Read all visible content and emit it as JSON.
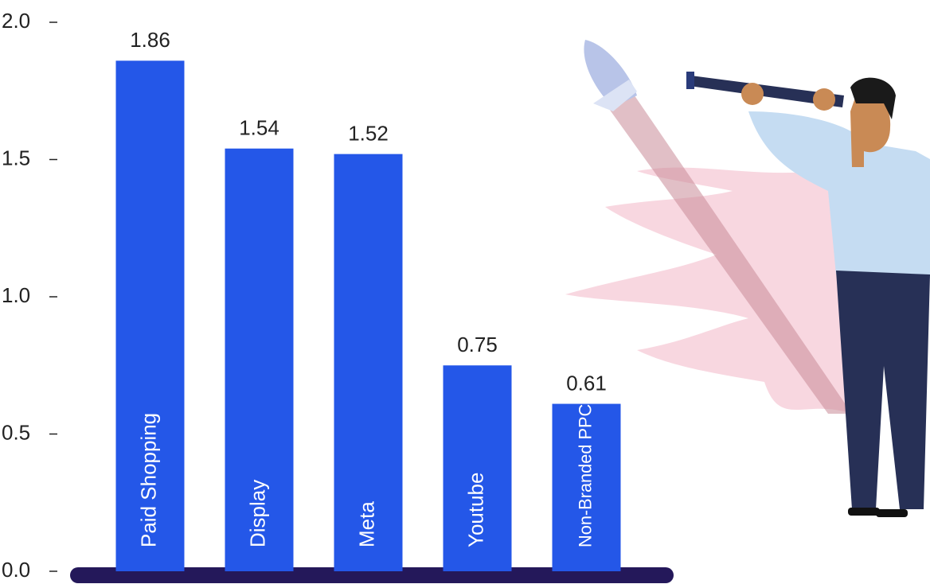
{
  "chart_data": {
    "type": "bar",
    "categories": [
      "Paid Shopping",
      "Display",
      "Meta",
      "Youtube",
      "Non-Branded PPC"
    ],
    "values": [
      1.86,
      1.54,
      1.52,
      0.75,
      0.61
    ],
    "color": "#2457e8",
    "ylim": [
      0,
      2
    ],
    "yticks": [
      {
        "value": 0,
        "label": "0.0"
      },
      0.5,
      {
        "value": 1,
        "label": "1.0"
      },
      1.5,
      {
        "value": 2,
        "label": "2.0"
      }
    ]
  }
}
